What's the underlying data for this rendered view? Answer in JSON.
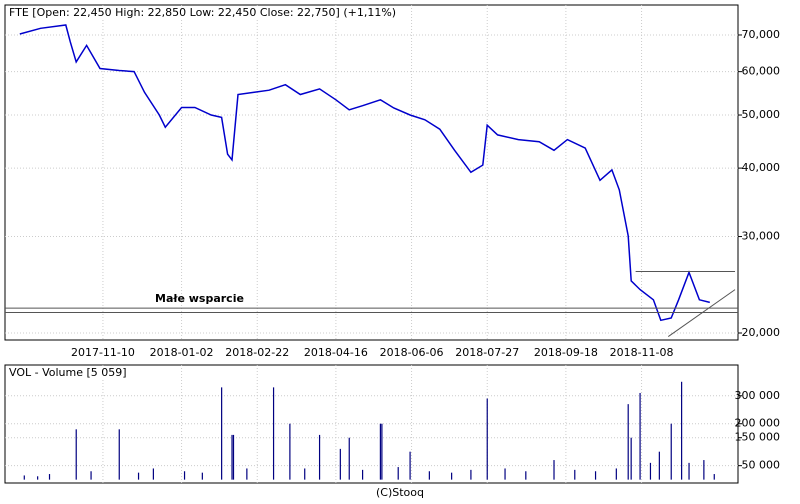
{
  "chart_data": [
    {
      "type": "line",
      "title": "FTE [Open: 22,450  High: 22,850  Low: 22,450  Close: 22,750]  (+1,11%)",
      "color": "#0000cc",
      "log_scale": true,
      "grid": true,
      "x": [
        "2017-09-15",
        "2017-09-29",
        "2017-10-16",
        "2017-10-19",
        "2017-10-23",
        "2017-10-30",
        "2017-11-08",
        "2017-11-21",
        "2017-12-01",
        "2017-12-08",
        "2017-12-18",
        "2017-12-22",
        "2018-01-02",
        "2018-01-11",
        "2018-01-22",
        "2018-01-29",
        "2018-02-02",
        "2018-02-05",
        "2018-02-09",
        "2018-02-20",
        "2018-03-02",
        "2018-03-13",
        "2018-03-23",
        "2018-04-05",
        "2018-04-16",
        "2018-04-25",
        "2018-05-04",
        "2018-05-16",
        "2018-05-25",
        "2018-06-05",
        "2018-06-15",
        "2018-06-25",
        "2018-07-05",
        "2018-07-16",
        "2018-07-24",
        "2018-07-27",
        "2018-08-03",
        "2018-08-17",
        "2018-08-31",
        "2018-09-10",
        "2018-09-19",
        "2018-10-01",
        "2018-10-11",
        "2018-10-19",
        "2018-10-24",
        "2018-10-30",
        "2018-11-01",
        "2018-11-07",
        "2018-11-16",
        "2018-11-21",
        "2018-11-28",
        "2018-12-03",
        "2018-12-10",
        "2018-12-17",
        "2018-12-24"
      ],
      "values": [
        70300,
        72000,
        73000,
        68000,
        62500,
        67000,
        60800,
        60300,
        60000,
        55000,
        50000,
        47500,
        51600,
        51600,
        50000,
        49500,
        42400,
        41400,
        54500,
        55000,
        55500,
        56800,
        54500,
        55800,
        53300,
        51100,
        52000,
        53300,
        51500,
        50000,
        49000,
        47100,
        43100,
        39300,
        40500,
        47900,
        46000,
        45100,
        44700,
        43100,
        45100,
        43500,
        38000,
        39700,
        36500,
        30100,
        24900,
        24000,
        23000,
        21100,
        21300,
        23000,
        25800,
        23000,
        22750
      ],
      "xlim": [
        "2017-09-05",
        "2019-01-12"
      ],
      "xticks": [
        "2017-11-10",
        "2018-01-02",
        "2018-02-22",
        "2018-04-16",
        "2018-06-06",
        "2018-07-27",
        "2018-09-18",
        "2018-11-08"
      ],
      "ylim": [
        19420,
        79400
      ],
      "yticks": [
        {
          "value": 20000,
          "label": "20,000"
        },
        {
          "value": 30000,
          "label": "30,000"
        },
        {
          "value": 40000,
          "label": "40,000"
        },
        {
          "value": 50000,
          "label": "50,000"
        },
        {
          "value": 60000,
          "label": "60,000"
        },
        {
          "value": 70000,
          "label": "70,000"
        }
      ],
      "support_lines": [
        22200,
        21800
      ],
      "support_label": "Małe wsparcie",
      "trend_lines": [
        {
          "x": [
            "2018-11-04",
            "2019-01-10"
          ],
          "values": [
            25900,
            25900
          ]
        },
        {
          "x": [
            "2018-11-26",
            "2019-01-10"
          ],
          "values": [
            19700,
            24000
          ]
        }
      ]
    },
    {
      "type": "bar",
      "title": "VOL - Volume [5 059]",
      "color": "#000080",
      "grid": true,
      "xlim": [
        "2017-09-05",
        "2019-01-12"
      ],
      "x": [
        "2017-09-18",
        "2017-09-27",
        "2017-10-05",
        "2017-10-23",
        "2017-11-02",
        "2017-11-21",
        "2017-12-04",
        "2017-12-14",
        "2018-01-04",
        "2018-01-16",
        "2018-01-29",
        "2018-02-05",
        "2018-02-06",
        "2018-02-15",
        "2018-03-05",
        "2018-03-16",
        "2018-03-26",
        "2018-04-05",
        "2018-04-19",
        "2018-04-25",
        "2018-05-04",
        "2018-05-16",
        "2018-05-17",
        "2018-05-28",
        "2018-06-05",
        "2018-06-18",
        "2018-07-03",
        "2018-07-16",
        "2018-07-27",
        "2018-08-08",
        "2018-08-22",
        "2018-09-10",
        "2018-09-24",
        "2018-10-08",
        "2018-10-22",
        "2018-10-30",
        "2018-11-01",
        "2018-11-07",
        "2018-11-14",
        "2018-11-20",
        "2018-11-28",
        "2018-12-05",
        "2018-12-10",
        "2018-12-20",
        "2018-12-27"
      ],
      "values": [
        15000,
        12000,
        20000,
        180000,
        30000,
        180000,
        25000,
        40000,
        30000,
        25000,
        330000,
        160000,
        160000,
        40000,
        330000,
        200000,
        40000,
        160000,
        110000,
        150000,
        35000,
        200000,
        200000,
        45000,
        100000,
        30000,
        25000,
        35000,
        290000,
        40000,
        30000,
        70000,
        35000,
        30000,
        40000,
        270000,
        150000,
        310000,
        60000,
        100000,
        200000,
        350000,
        60000,
        70000,
        20000
      ],
      "ylim": [
        -12000,
        410000
      ],
      "yticks": [
        {
          "value": 50000,
          "label": "50 000"
        },
        {
          "value": 150000,
          "label": "150 000"
        },
        {
          "value": 200000,
          "label": "200 000"
        },
        {
          "value": 300000,
          "label": "300 000"
        }
      ]
    }
  ],
  "footer": "(C)Stooq"
}
